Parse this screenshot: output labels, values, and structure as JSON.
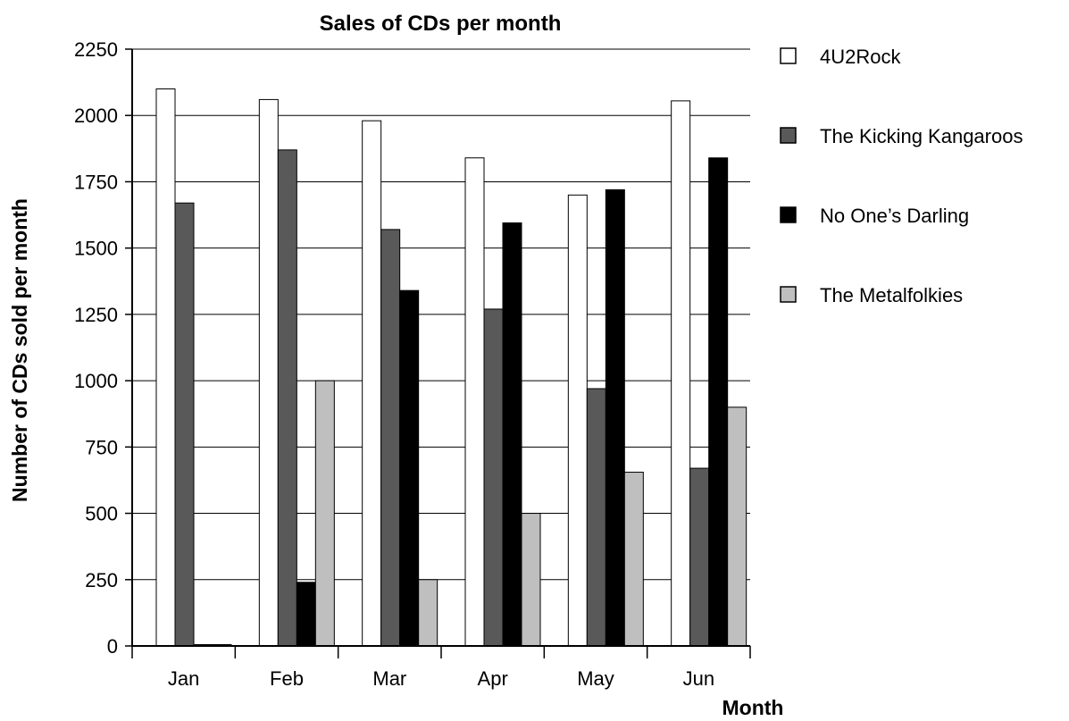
{
  "chart_data": {
    "type": "bar",
    "title": "Sales of CDs per month",
    "xlabel": "Month",
    "ylabel": "Number of CDs sold per month",
    "categories": [
      "Jan",
      "Feb",
      "Mar",
      "Apr",
      "May",
      "Jun"
    ],
    "ylim": [
      0,
      2250
    ],
    "yticks": [
      0,
      250,
      500,
      750,
      1000,
      1250,
      1500,
      1750,
      2000,
      2250
    ],
    "grid": true,
    "legend_position": "right",
    "series": [
      {
        "name": "4U2Rock",
        "color": "#ffffff",
        "values": [
          2100,
          2060,
          1980,
          1840,
          1700,
          2055
        ]
      },
      {
        "name": "The Kicking Kangaroos",
        "color": "#595959",
        "values": [
          1670,
          1870,
          1570,
          1270,
          970,
          670
        ]
      },
      {
        "name": "No One’s Darling",
        "color": "#000000",
        "values": [
          0,
          240,
          1340,
          1595,
          1720,
          1840
        ]
      },
      {
        "name": "The Metalfolkies",
        "color": "#bfbfbf",
        "values": [
          0,
          1000,
          250,
          500,
          655,
          900
        ]
      }
    ]
  }
}
